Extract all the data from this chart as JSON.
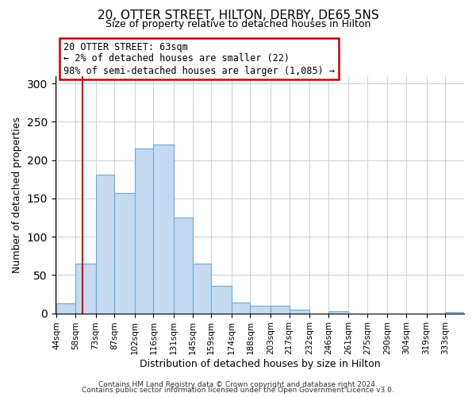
{
  "title": "20, OTTER STREET, HILTON, DERBY, DE65 5NS",
  "subtitle": "Size of property relative to detached houses in Hilton",
  "xlabel": "Distribution of detached houses by size in Hilton",
  "ylabel": "Number of detached properties",
  "bin_labels": [
    "44sqm",
    "58sqm",
    "73sqm",
    "87sqm",
    "102sqm",
    "116sqm",
    "131sqm",
    "145sqm",
    "159sqm",
    "174sqm",
    "188sqm",
    "203sqm",
    "217sqm",
    "232sqm",
    "246sqm",
    "261sqm",
    "275sqm",
    "290sqm",
    "304sqm",
    "319sqm",
    "333sqm"
  ],
  "bar_values": [
    13,
    65,
    181,
    157,
    215,
    220,
    125,
    65,
    36,
    14,
    10,
    10,
    5,
    0,
    3,
    0,
    0,
    0,
    0,
    0,
    2
  ],
  "bar_color": "#c5d9f0",
  "bar_edge_color": "#6aaad4",
  "bin_edges_sqm": [
    44,
    58,
    73,
    87,
    102,
    116,
    131,
    145,
    159,
    174,
    188,
    203,
    217,
    232,
    246,
    261,
    275,
    290,
    304,
    319,
    333,
    347
  ],
  "property_sqm": 63,
  "property_line_label": "20 OTTER STREET: 63sqm",
  "annotation_line1": "← 2% of detached houses are smaller (22)",
  "annotation_line2": "98% of semi-detached houses are larger (1,085) →",
  "annotation_box_color": "#ffffff",
  "annotation_box_edge_color": "#cc0000",
  "vline_color": "#cc0000",
  "ylim": [
    0,
    310
  ],
  "yticks": [
    0,
    50,
    100,
    150,
    200,
    250,
    300
  ],
  "footer1": "Contains HM Land Registry data © Crown copyright and database right 2024.",
  "footer2": "Contains public sector information licensed under the Open Government Licence v3.0."
}
